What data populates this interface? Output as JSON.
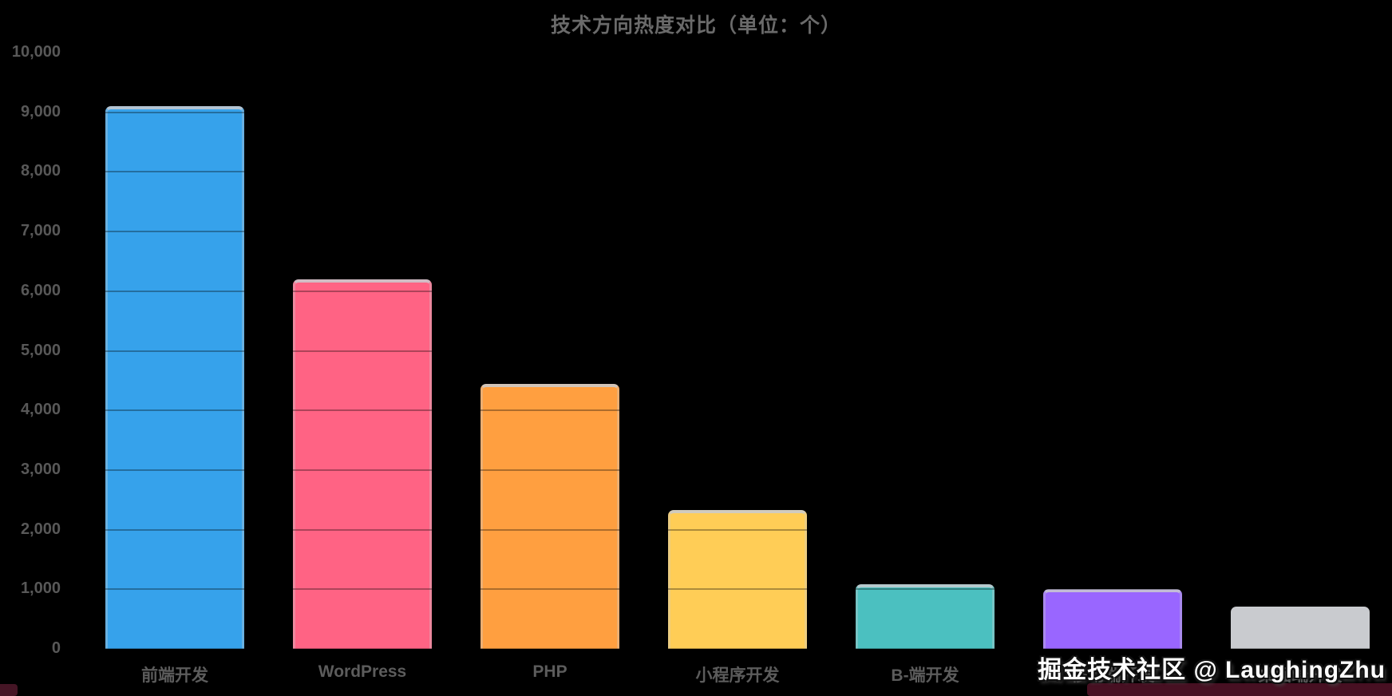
{
  "watermark": {
    "text": "掘金技术社区 @ LaughingZhu",
    "color": "#ffffff"
  },
  "chart_data": {
    "type": "bar",
    "title": "技术方向热度对比（单位：个）",
    "categories": [
      "前端开发",
      "WordPress",
      "PHP",
      "小程序开发",
      "B-端开发",
      "移动端开发",
      "桌面端开发"
    ],
    "values": [
      9100,
      6200,
      4450,
      2330,
      1090,
      1000,
      710
    ],
    "bar_colors": [
      "#36A2EB",
      "#FF6384",
      "#FF9F40",
      "#FFCD56",
      "#4BC0C0",
      "#9966FF",
      "#C9CBCF"
    ],
    "xlabel": "",
    "ylabel": "",
    "ylim": [
      0,
      10000
    ],
    "y_tick_step": 1000,
    "y_ticks": [
      "10,000",
      "9,000",
      "8,000",
      "7,000",
      "6,000",
      "5,000",
      "4,000",
      "3,000",
      "2,000",
      "1,000",
      "0"
    ],
    "grid": true,
    "gridline_color": "rgba(0,0,0,0.32)",
    "legend_position": "none",
    "background_color": "#000000",
    "text_color": "#5c5c5c"
  }
}
